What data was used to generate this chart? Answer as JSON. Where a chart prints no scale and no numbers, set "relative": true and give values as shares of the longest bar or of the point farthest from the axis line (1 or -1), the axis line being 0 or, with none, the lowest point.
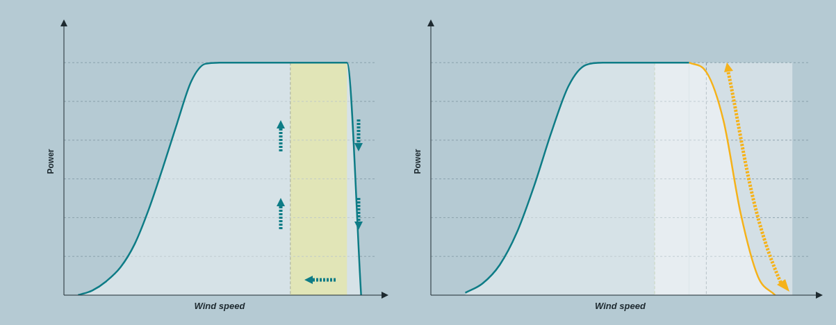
{
  "chart_data": [
    {
      "type": "area",
      "xlabel": "Wind speed",
      "ylabel": "Power",
      "relative": true,
      "grid": "y",
      "legend": false,
      "categories": [
        null,
        null,
        null,
        null,
        null,
        null,
        null,
        null,
        null,
        null,
        null,
        null,
        null,
        null,
        null,
        null,
        null,
        null,
        null,
        null,
        null,
        null,
        null
      ],
      "series": [
        {
          "color": "#0e7c86",
          "values": [
            null,
            0,
            0.02,
            0.06,
            0.12,
            0.22,
            0.37,
            0.55,
            0.74,
            0.92,
            0.995,
            1,
            1,
            1,
            1,
            1,
            1,
            1,
            1,
            1,
            1,
            0,
            null
          ]
        }
      ]
    },
    {
      "type": "area",
      "xlabel": "Wind speed",
      "ylabel": "Power",
      "relative": true,
      "grid": "y",
      "legend": false,
      "categories": [
        null,
        null,
        null,
        null,
        null,
        null,
        null,
        null,
        null,
        null,
        null,
        null,
        null,
        null,
        null,
        null,
        null,
        null,
        null,
        null,
        null,
        null,
        null
      ],
      "series": [
        {
          "color": "#0e7c86",
          "values": [
            null,
            null,
            0.01,
            0.05,
            0.13,
            0.27,
            0.47,
            0.7,
            0.9,
            0.99,
            1,
            1,
            1,
            1,
            1,
            1,
            null,
            null,
            null,
            null,
            null,
            null,
            null
          ]
        },
        {
          "color": "#f5b21a",
          "values": [
            null,
            null,
            null,
            null,
            null,
            null,
            null,
            null,
            null,
            null,
            null,
            null,
            null,
            null,
            null,
            1,
            0.96,
            0.75,
            0.35,
            0.08,
            0,
            null,
            null
          ]
        }
      ]
    }
  ]
}
